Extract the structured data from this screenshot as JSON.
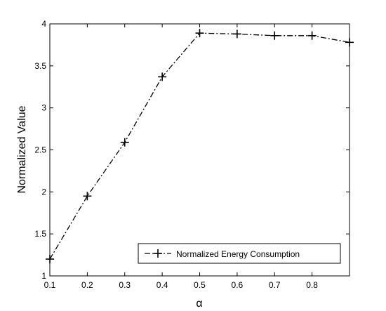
{
  "chart_data": {
    "type": "line",
    "xlabel": "α",
    "ylabel": "Normalized Value",
    "xlim": [
      0.1,
      0.9
    ],
    "ylim": [
      1,
      4
    ],
    "xticks": [
      "0.1",
      "0.2",
      "0.3",
      "0.4",
      "0.5",
      "0.6",
      "0.7",
      "0.8"
    ],
    "yticks": [
      "1",
      "1.5",
      "2",
      "2.5",
      "3",
      "3.5",
      "4"
    ],
    "grid": false,
    "legend_position": "bottom-right",
    "series": [
      {
        "name": "Normalized Energy Consumption",
        "line_style": "dash-dot",
        "marker": "plus",
        "color": "#000000",
        "x": [
          0.1,
          0.2,
          0.3,
          0.4,
          0.5,
          0.6,
          0.7,
          0.8,
          0.9
        ],
        "y": [
          1.2,
          1.95,
          2.59,
          3.37,
          3.89,
          3.88,
          3.86,
          3.86,
          3.78
        ]
      }
    ]
  }
}
